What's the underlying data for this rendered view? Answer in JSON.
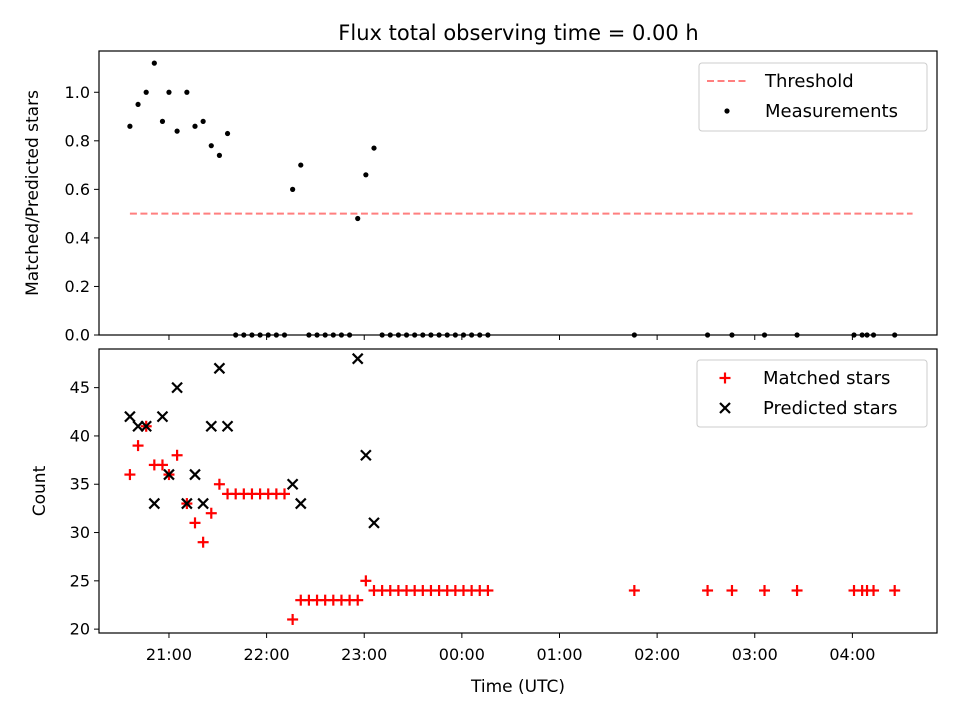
{
  "chart_data": [
    {
      "type": "scatter",
      "title": "Flux total observing time = 0.00 h",
      "xlabel": "",
      "ylabel": "Matched/Predicted stars",
      "xlim": [
        "20:17",
        "04:52"
      ],
      "ylim": [
        0,
        1.17
      ],
      "yticks": [
        0,
        0.2,
        0.4,
        0.6,
        0.8,
        1.0
      ],
      "ytick_labels": [
        "0.0",
        "0.2",
        "0.4",
        "0.6",
        "0.8",
        "1.0"
      ],
      "grid": false,
      "legend_position": "top-right",
      "series": [
        {
          "name": "Threshold",
          "style": "dashed-line",
          "color": "#ff7f7f",
          "x": [
            "20:36",
            "04:37"
          ],
          "y": [
            0.5,
            0.5
          ]
        },
        {
          "name": "Measurements",
          "style": "dot",
          "color": "#000000",
          "x": [
            "20:36",
            "20:41",
            "20:46",
            "20:51",
            "20:56",
            "21:00",
            "21:05",
            "21:11",
            "21:16",
            "21:21",
            "21:26",
            "21:31",
            "21:36",
            "21:41",
            "21:46",
            "21:51",
            "21:56",
            "22:01",
            "22:06",
            "22:11",
            "22:16",
            "22:21",
            "22:26",
            "22:31",
            "22:36",
            "22:41",
            "22:46",
            "22:51",
            "22:56",
            "23:01",
            "23:06",
            "23:11",
            "23:16",
            "23:21",
            "23:26",
            "23:31",
            "23:36",
            "23:41",
            "23:46",
            "23:51",
            "23:56",
            "00:01",
            "00:06",
            "00:11",
            "00:16",
            "01:46",
            "02:31",
            "02:46",
            "03:06",
            "03:26",
            "04:01",
            "04:06",
            "04:09",
            "04:13",
            "04:26"
          ],
          "y": [
            0.86,
            0.95,
            1.0,
            1.12,
            0.88,
            1.0,
            0.84,
            1.0,
            0.86,
            0.88,
            0.78,
            0.74,
            0.83,
            0,
            0,
            0,
            0,
            0,
            0,
            0,
            0.6,
            0.7,
            0,
            0,
            0,
            0,
            0,
            0,
            0.48,
            0.66,
            0.77,
            0,
            0,
            0,
            0,
            0,
            0,
            0,
            0,
            0,
            0,
            0,
            0,
            0,
            0,
            0,
            0,
            0,
            0,
            0,
            0,
            0,
            0,
            0,
            0
          ]
        }
      ]
    },
    {
      "type": "scatter",
      "title": "",
      "xlabel": "Time (UTC)",
      "ylabel": "Count",
      "xlim": [
        "20:17",
        "04:52"
      ],
      "ylim": [
        19.6,
        49.0
      ],
      "yticks": [
        20,
        25,
        30,
        35,
        40,
        45
      ],
      "ytick_labels": [
        "20",
        "25",
        "30",
        "35",
        "40",
        "45"
      ],
      "xticks": [
        "21:00",
        "22:00",
        "23:00",
        "00:00",
        "01:00",
        "02:00",
        "03:00",
        "04:00"
      ],
      "grid": false,
      "legend_position": "top-right",
      "series": [
        {
          "name": "Matched stars",
          "marker": "plus",
          "color": "#ff0000",
          "x": [
            "20:36",
            "20:41",
            "20:46",
            "20:51",
            "20:56",
            "21:00",
            "21:05",
            "21:11",
            "21:16",
            "21:21",
            "21:26",
            "21:31",
            "21:36",
            "21:41",
            "21:46",
            "21:51",
            "21:56",
            "22:01",
            "22:06",
            "22:11",
            "22:16",
            "22:21",
            "22:26",
            "22:31",
            "22:36",
            "22:41",
            "22:46",
            "22:51",
            "22:56",
            "23:01",
            "23:06",
            "23:11",
            "23:16",
            "23:21",
            "23:26",
            "23:31",
            "23:36",
            "23:41",
            "23:46",
            "23:51",
            "23:56",
            "00:01",
            "00:06",
            "00:11",
            "00:16",
            "01:46",
            "02:31",
            "02:46",
            "03:06",
            "03:26",
            "04:01",
            "04:06",
            "04:09",
            "04:13",
            "04:26"
          ],
          "y": [
            36,
            39,
            41,
            37,
            37,
            36,
            38,
            33,
            31,
            29,
            32,
            35,
            34,
            34,
            34,
            34,
            34,
            34,
            34,
            34,
            21,
            23,
            23,
            23,
            23,
            23,
            23,
            23,
            23,
            25,
            24,
            24,
            24,
            24,
            24,
            24,
            24,
            24,
            24,
            24,
            24,
            24,
            24,
            24,
            24,
            24,
            24,
            24,
            24,
            24,
            24,
            24,
            24,
            24,
            24
          ]
        },
        {
          "name": "Predicted stars",
          "marker": "x",
          "color": "#000000",
          "x": [
            "20:36",
            "20:41",
            "20:46",
            "20:51",
            "20:56",
            "21:00",
            "21:05",
            "21:11",
            "21:16",
            "21:21",
            "21:26",
            "21:31",
            "21:36",
            "22:16",
            "22:21",
            "22:56",
            "23:01",
            "23:06"
          ],
          "y": [
            42,
            41,
            41,
            33,
            42,
            36,
            45,
            33,
            36,
            33,
            41,
            47,
            41,
            35,
            33,
            48,
            38,
            31
          ]
        }
      ]
    }
  ]
}
